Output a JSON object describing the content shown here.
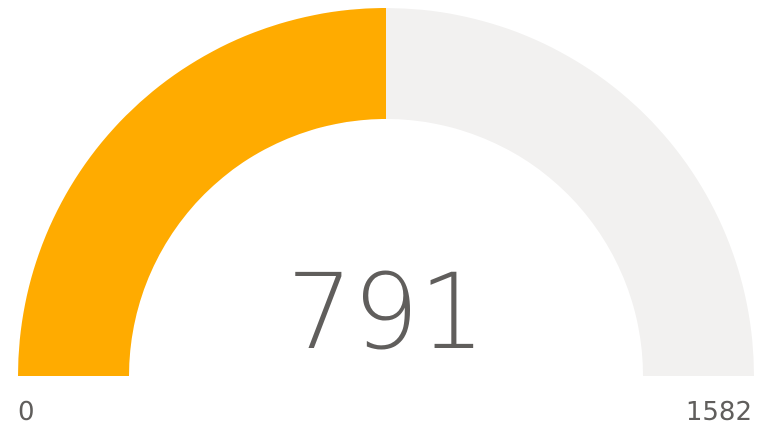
{
  "chart_data": {
    "type": "gauge",
    "value": 791,
    "ylim": [
      0,
      1582
    ],
    "color": "#FFAB00",
    "track_color": "#F2F1F0"
  }
}
